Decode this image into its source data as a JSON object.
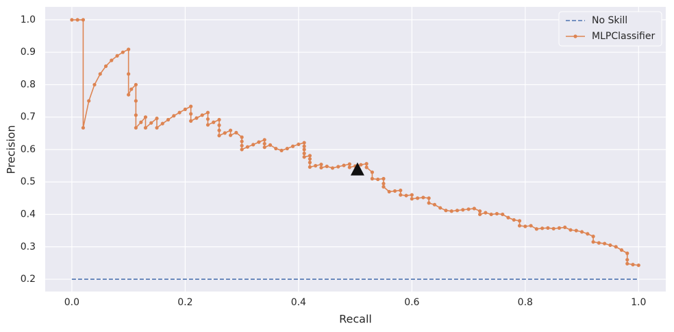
{
  "chart_data": {
    "type": "line",
    "xlabel": "Recall",
    "ylabel": "Precision",
    "xlim": [
      -0.047,
      1.048
    ],
    "ylim": [
      0.162,
      1.04
    ],
    "xticks": [
      {
        "value": 0,
        "label": "0.0"
      },
      0.2,
      0.4,
      0.6,
      0.8,
      {
        "value": 1,
        "label": "1.0"
      }
    ],
    "yticks": [
      0.2,
      0.3,
      0.4,
      0.5,
      0.6,
      0.7,
      0.8,
      0.9,
      {
        "value": 1,
        "label": "1.0"
      }
    ],
    "grid": true,
    "legend": "upper right",
    "series": [
      {
        "name": "No Skill",
        "color": "#4c72b0",
        "style": "dashed",
        "x": [
          0,
          1
        ],
        "values": [
          0.2,
          0.2
        ]
      },
      {
        "name": "MLPClassifier",
        "color": "#dd8452",
        "style": "solid",
        "markers": true,
        "x": [
          0,
          0.01,
          0.02,
          0.02,
          0.03,
          0.04,
          0.05,
          0.06,
          0.07,
          0.08,
          0.09,
          0.1,
          0.1,
          0.1,
          0.105,
          0.113,
          0.113,
          0.113,
          0.113,
          0.122,
          0.13,
          0.13,
          0.14,
          0.15,
          0.15,
          0.16,
          0.17,
          0.18,
          0.19,
          0.2,
          0.21,
          0.21,
          0.21,
          0.22,
          0.23,
          0.24,
          0.24,
          0.24,
          0.25,
          0.26,
          0.26,
          0.26,
          0.26,
          0.27,
          0.28,
          0.28,
          0.29,
          0.3,
          0.3,
          0.3,
          0.3,
          0.31,
          0.32,
          0.33,
          0.34,
          0.34,
          0.34,
          0.35,
          0.36,
          0.37,
          0.38,
          0.39,
          0.4,
          0.41,
          0.41,
          0.41,
          0.41,
          0.41,
          0.42,
          0.42,
          0.42,
          0.42,
          0.43,
          0.44,
          0.44,
          0.45,
          0.46,
          0.47,
          0.48,
          0.49,
          0.49,
          0.5,
          0.51,
          0.52,
          0.52,
          0.53,
          0.53,
          0.54,
          0.55,
          0.55,
          0.55,
          0.56,
          0.57,
          0.58,
          0.58,
          0.59,
          0.6,
          0.6,
          0.61,
          0.62,
          0.63,
          0.63,
          0.64,
          0.65,
          0.66,
          0.67,
          0.68,
          0.69,
          0.7,
          0.71,
          0.72,
          0.72,
          0.73,
          0.74,
          0.75,
          0.76,
          0.77,
          0.78,
          0.79,
          0.79,
          0.8,
          0.81,
          0.82,
          0.83,
          0.84,
          0.85,
          0.86,
          0.87,
          0.88,
          0.89,
          0.9,
          0.91,
          0.92,
          0.92,
          0.93,
          0.94,
          0.95,
          0.96,
          0.97,
          0.98,
          0.98,
          0.98,
          0.99,
          1.0
        ],
        "values": [
          1.0,
          1.0,
          1.0,
          0.667,
          0.75,
          0.8,
          0.833,
          0.857,
          0.875,
          0.889,
          0.9,
          0.909,
          0.833,
          0.769,
          0.786,
          0.8,
          0.75,
          0.706,
          0.667,
          0.684,
          0.7,
          0.667,
          0.682,
          0.696,
          0.667,
          0.68,
          0.692,
          0.704,
          0.714,
          0.724,
          0.733,
          0.71,
          0.688,
          0.697,
          0.706,
          0.714,
          0.694,
          0.676,
          0.684,
          0.692,
          0.675,
          0.659,
          0.643,
          0.651,
          0.659,
          0.644,
          0.652,
          0.638,
          0.625,
          0.612,
          0.6,
          0.608,
          0.615,
          0.623,
          0.63,
          0.618,
          0.607,
          0.614,
          0.603,
          0.597,
          0.603,
          0.61,
          0.616,
          0.621,
          0.61,
          0.6,
          0.588,
          0.577,
          0.581,
          0.571,
          0.56,
          0.546,
          0.55,
          0.554,
          0.544,
          0.548,
          0.543,
          0.547,
          0.551,
          0.555,
          0.545,
          0.549,
          0.553,
          0.556,
          0.545,
          0.53,
          0.51,
          0.508,
          0.51,
          0.495,
          0.485,
          0.47,
          0.472,
          0.474,
          0.46,
          0.458,
          0.46,
          0.448,
          0.45,
          0.452,
          0.45,
          0.435,
          0.43,
          0.42,
          0.412,
          0.41,
          0.412,
          0.414,
          0.416,
          0.418,
          0.41,
          0.4,
          0.405,
          0.4,
          0.402,
          0.4,
          0.39,
          0.383,
          0.38,
          0.365,
          0.363,
          0.365,
          0.355,
          0.357,
          0.358,
          0.356,
          0.358,
          0.36,
          0.352,
          0.35,
          0.346,
          0.34,
          0.332,
          0.315,
          0.312,
          0.31,
          0.305,
          0.3,
          0.29,
          0.28,
          0.26,
          0.248,
          0.245,
          0.243
        ]
      }
    ],
    "highlight": {
      "x": 0.504,
      "y": 0.537,
      "color": "#111111"
    }
  }
}
